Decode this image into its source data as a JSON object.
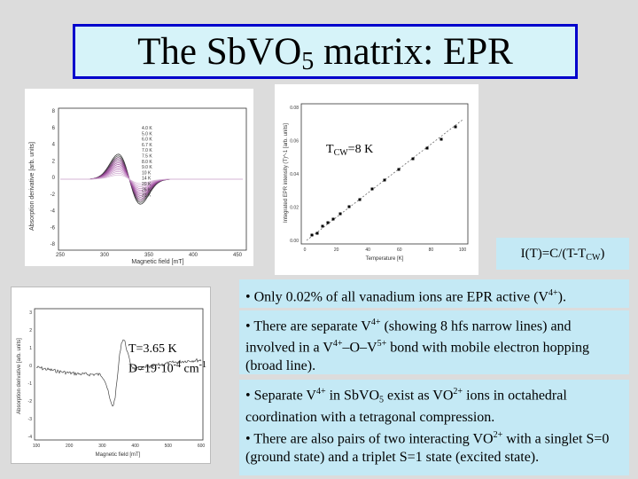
{
  "slide": {
    "title_main": "The SbVO",
    "title_sub": "5",
    "title_rest": " matrix: EPR"
  },
  "plot1": {
    "ylabel": "Absorption derivative [arb. units]",
    "xlabel": "Magnetic field [mT]",
    "yticks": [
      "8",
      "6",
      "4",
      "2",
      "0",
      "-2",
      "-4",
      "-6",
      "-8"
    ],
    "xticks": [
      "250",
      "300",
      "350",
      "400",
      "450"
    ],
    "legend": [
      "4.0 K",
      "5.0 K",
      "6.0 K",
      "6.7 K",
      "7.0 K",
      "7.5 K",
      "8.0 K",
      "9.0 K",
      "10 K",
      "14 K",
      "20 K",
      "26 K",
      "31 K"
    ]
  },
  "plot2": {
    "ylabel": "Integrated EPR intensity (T)^-1 [arb. units]",
    "xlabel": "Temperature [K]",
    "annotation_main": "T",
    "annotation_sub": "CW",
    "annotation_rest": "=8 K",
    "yticks": [
      "0.08",
      "0.06",
      "0.04",
      "0.02",
      "0.00"
    ],
    "xticks": [
      "0",
      "20",
      "40",
      "60",
      "80",
      "100"
    ]
  },
  "plot3": {
    "ylabel": "Absorption derivative [arb. units]",
    "xlabel": "Magnetic field [mT]",
    "yticks": [
      "3",
      "2",
      "1",
      "0",
      "-1",
      "-2",
      "-3",
      "-4"
    ],
    "xticks": [
      "100",
      "200",
      "300",
      "400",
      "500",
      "600"
    ],
    "temp_label": "T=3.65 K",
    "d_label": "D=19·10",
    "d_sup": "-4",
    "d_unit": " cm",
    "d_unit_sup": "-1"
  },
  "formula": {
    "lhs": "I(T)=C/(T-T",
    "sub": "CW",
    "rhs": ")"
  },
  "bullets": {
    "b1_a": "• Only 0.02% of all vanadium ions are EPR active (V",
    "b1_sup": "4+",
    "b1_b": ").",
    "b2_a": "• There are separate V",
    "b2_sup1": "4+",
    "b2_b": " (showing 8 hfs narrow lines) and involved in a V",
    "b2_sup2": "4+",
    "b2_c": "–O–V",
    "b2_sup3": "5+",
    "b2_d": " bond with  mobile electron hopping (broad line).",
    "b3_a": "• Separate V",
    "b3_sup1": "4+",
    "b3_b": " in SbVO",
    "b3_sub": "5",
    "b3_c": " exist as VO",
    "b3_sup2": "2+",
    "b3_d": " ions in octahedral coordination with a tetragonal compression.",
    "b3_e": "• There are also pairs of two interacting VO",
    "b3_sup3": "2+",
    "b3_f": " with a singlet S=0 (ground state) and a triplet S=1 state (excited state)."
  }
}
